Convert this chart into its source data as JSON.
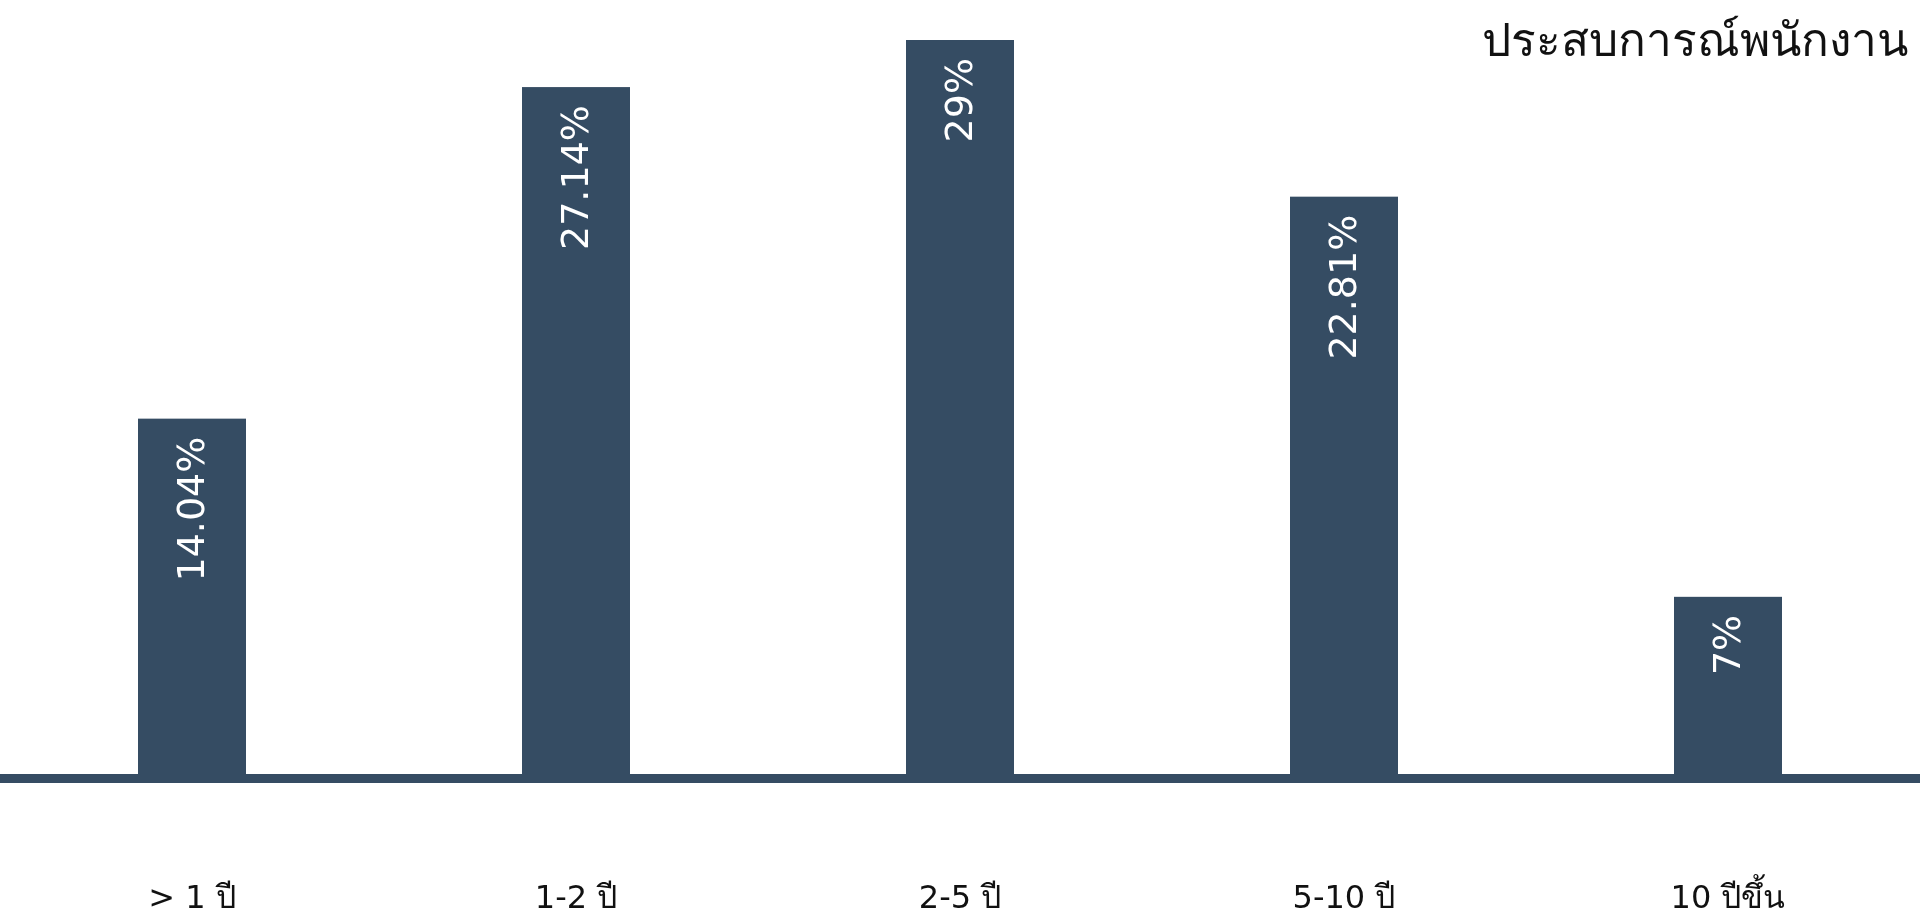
{
  "chart_data": {
    "type": "bar",
    "title": "ประสบการณ์พนักงาน",
    "categories": [
      "> 1 ปี",
      "1-2 ปี",
      "2-5 ปี",
      "5-10 ปี",
      "10 ปีขึ้น"
    ],
    "values": [
      14.04,
      27.14,
      29,
      22.81,
      7
    ],
    "value_labels": [
      "14.04%",
      "27.14%",
      "29%",
      "22.81%",
      "7%"
    ],
    "color": "#354c63"
  }
}
